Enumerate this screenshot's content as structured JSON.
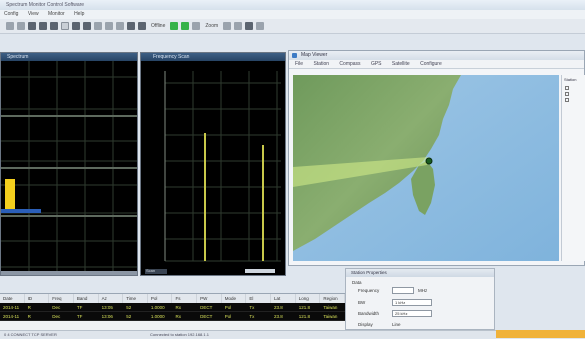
{
  "window": {
    "title": "Spectrum Monitor Control Software",
    "menu": [
      "Config",
      "View",
      "Monitor",
      "Help"
    ]
  },
  "toolbar": {
    "status_text": "Offline",
    "zoom_text": "Zoom"
  },
  "panes": {
    "left_title": "Spectrum",
    "middle_title": "Frequency Scan",
    "middle_footer": "Scan"
  },
  "map_window": {
    "title": "Map Viewer",
    "menu": [
      "File",
      "Station",
      "Compass",
      "GPS",
      "Satellite",
      "Configure"
    ],
    "side_label": "Station"
  },
  "table": {
    "headers": [
      "Date",
      "ID",
      "Freq",
      "Band",
      "Az",
      "Time",
      "Pol",
      "Fs",
      "PW",
      "Mode",
      "El",
      "Lat",
      "Long",
      "Region"
    ],
    "rows": [
      [
        "2014-11",
        "R",
        "Dec",
        "TF",
        "13:05",
        "52",
        "1.0000",
        "Rx",
        "DECT",
        "Pol",
        "Tx",
        "23.8",
        "121.8",
        "Taiwan"
      ],
      [
        "2014-11",
        "R",
        "Dec",
        "TF",
        "13:06",
        "52",
        "1.0000",
        "Rx",
        "DECT",
        "Pol",
        "Tx",
        "23.8",
        "121.8",
        "Taiwan"
      ]
    ]
  },
  "properties": {
    "title": "Station Properties",
    "group_label": "Data",
    "frequency_label": "Frequency",
    "frequency_unit": "MHz",
    "field_bw_label": "BW",
    "field_bw_value": "1 kHz",
    "field_bandwidth_label": "Bandwidth",
    "field_bandwidth_value": "25 kHz",
    "field_display_label": "Display",
    "field_display_value": "Line"
  },
  "status": {
    "text": "0   4   CONNECT   TCP   SERVER",
    "middle": "Connected to station 192.168.1.1"
  },
  "colors": {
    "accent_green": "#37b34a",
    "bar_yellow": "#f4cf1d",
    "bar_blue": "#2b5fb8",
    "trace_olive": "#c8c84a",
    "status_orange": "#f0b23a"
  }
}
